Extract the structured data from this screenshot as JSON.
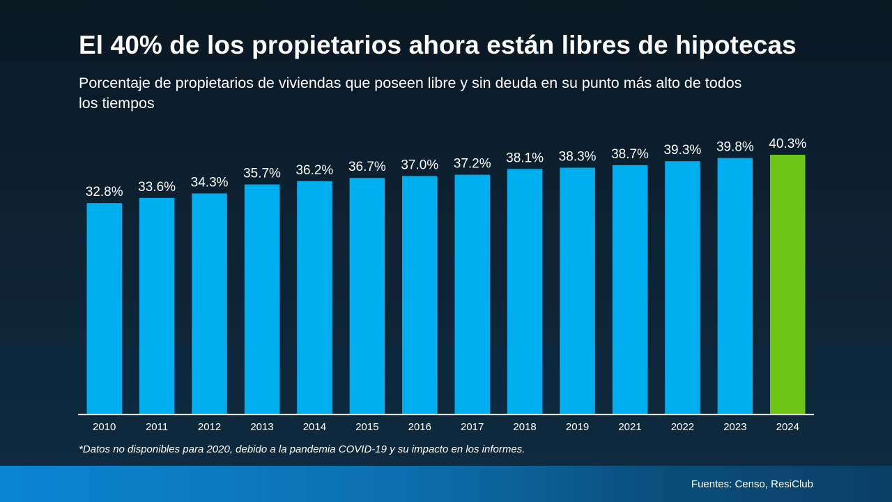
{
  "title": "El 40% de los propietarios ahora están libres de hipotecas",
  "subtitle": "Porcentaje de propietarios de viviendas que poseen libre y sin deuda en su punto más alto de todos los tiempos",
  "footnote": "*Datos no disponibles para 2020, debido a la pandemia COVID-19 y su impacto en los informes.",
  "sources": "Fuentes: Censo, ResiClub",
  "colors": {
    "bar": "#00aeef",
    "highlight_bar": "#6cc417",
    "axis": "#ffffff"
  },
  "chart_data": {
    "type": "bar",
    "categories": [
      "2010",
      "2011",
      "2012",
      "2013",
      "2014",
      "2015",
      "2016",
      "2017",
      "2018",
      "2019",
      "2021",
      "2022",
      "2023",
      "2024"
    ],
    "values": [
      32.8,
      33.6,
      34.3,
      35.7,
      36.2,
      36.7,
      37.0,
      37.2,
      38.1,
      38.3,
      38.7,
      39.3,
      39.8,
      40.3
    ],
    "data_labels": [
      "32.8%",
      "33.6%",
      "34.3%",
      "35.7%",
      "36.2%",
      "36.7%",
      "37.0%",
      "37.2%",
      "38.1%",
      "38.3%",
      "38.7%",
      "39.3%",
      "39.8%",
      "40.3%"
    ],
    "highlight_category": "2024",
    "ylim": [
      0,
      40.3
    ],
    "grid": false,
    "legend": "none",
    "xlabel": "",
    "ylabel": ""
  }
}
